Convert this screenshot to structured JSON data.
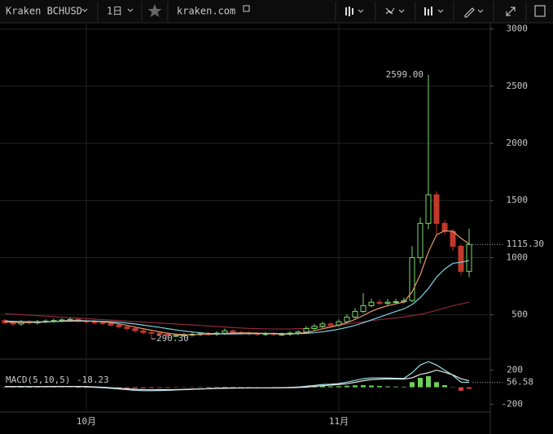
{
  "toolbar": {
    "symbol": "Kraken BCHUSD",
    "interval": "1日",
    "source": "kraken.com"
  },
  "chart_data": [
    {
      "type": "candlestick",
      "categories": [
        null,
        null,
        null,
        null,
        null,
        null,
        null,
        null,
        null,
        null,
        "10月",
        null,
        null,
        null,
        null,
        null,
        null,
        null,
        null,
        null,
        null,
        null,
        null,
        null,
        null,
        null,
        null,
        null,
        null,
        null,
        null,
        null,
        null,
        null,
        null,
        null,
        null,
        null,
        null,
        null,
        null,
        "11月",
        null,
        null,
        null,
        null,
        null,
        null,
        null,
        null,
        null,
        null,
        null,
        null,
        null,
        null,
        null,
        null
      ],
      "open": [
        450,
        430,
        420,
        440,
        430,
        440,
        445,
        450,
        455,
        460,
        445,
        440,
        430,
        425,
        410,
        395,
        380,
        360,
        345,
        340,
        330,
        320,
        320,
        325,
        330,
        335,
        330,
        340,
        360,
        345,
        340,
        335,
        330,
        335,
        330,
        330,
        340,
        350,
        380,
        400,
        420,
        410,
        440,
        480,
        530,
        580,
        610,
        600,
        610,
        615,
        625,
        1000,
        1300,
        1550,
        1300,
        1230,
        1100,
        880
      ],
      "high": [
        465,
        445,
        455,
        455,
        455,
        460,
        465,
        470,
        475,
        475,
        460,
        455,
        445,
        440,
        425,
        410,
        395,
        375,
        360,
        355,
        345,
        335,
        340,
        345,
        350,
        350,
        355,
        380,
        375,
        360,
        355,
        350,
        350,
        350,
        345,
        355,
        365,
        400,
        420,
        440,
        435,
        460,
        505,
        560,
        690,
        640,
        635,
        640,
        640,
        650,
        1100,
        1350,
        2599,
        1580,
        1330,
        1250,
        1120,
        1255
      ],
      "low": [
        415,
        405,
        405,
        415,
        415,
        425,
        430,
        435,
        440,
        430,
        425,
        415,
        410,
        395,
        380,
        365,
        345,
        330,
        290.3,
        315,
        305,
        305,
        305,
        310,
        315,
        315,
        315,
        325,
        330,
        325,
        320,
        315,
        315,
        315,
        315,
        315,
        325,
        335,
        365,
        385,
        395,
        395,
        425,
        465,
        515,
        565,
        585,
        585,
        595,
        600,
        610,
        950,
        1250,
        1200,
        1200,
        1060,
        845,
        830
      ],
      "close": [
        430,
        420,
        440,
        430,
        440,
        445,
        450,
        455,
        460,
        445,
        440,
        430,
        425,
        410,
        395,
        380,
        360,
        345,
        340,
        330,
        320,
        320,
        325,
        330,
        335,
        330,
        340,
        360,
        345,
        340,
        335,
        330,
        335,
        330,
        330,
        340,
        350,
        380,
        400,
        420,
        410,
        440,
        480,
        530,
        580,
        610,
        600,
        610,
        615,
        625,
        1000,
        1300,
        1550,
        1300,
        1230,
        1100,
        880,
        1115.3
      ],
      "up_color": "#7ddb6f",
      "down_color": "#c0392b",
      "series": [
        {
          "color": "#e89a6a",
          "values": [
            440,
            435,
            433,
            432,
            434,
            437,
            441,
            446,
            452,
            451,
            448,
            444,
            439,
            432,
            421,
            408,
            393,
            378,
            365,
            351,
            339,
            330,
            327,
            326,
            328,
            330,
            332,
            337,
            340,
            343,
            342,
            340,
            337,
            334,
            332,
            333,
            337,
            346,
            360,
            378,
            392,
            410,
            432,
            460,
            494,
            531,
            558,
            580,
            596,
            612,
            700,
            850,
            1050,
            1200,
            1235,
            1230,
            1170,
            1120
          ]
        },
        {
          "color": "#7fd3e3",
          "values": [
            445,
            443,
            441,
            440,
            439,
            440,
            441,
            443,
            445,
            446,
            446,
            445,
            443,
            440,
            435,
            428,
            420,
            410,
            400,
            390,
            379,
            368,
            358,
            350,
            343,
            337,
            334,
            333,
            333,
            334,
            335,
            336,
            337,
            337,
            336,
            335,
            335,
            338,
            344,
            352,
            362,
            374,
            390,
            408,
            430,
            455,
            480,
            505,
            530,
            552,
            590,
            650,
            730,
            830,
            900,
            950,
            960,
            975
          ]
        },
        {
          "color": "#8e2a3a",
          "values": [
            510,
            506,
            501,
            497,
            493,
            489,
            484,
            480,
            476,
            471,
            467,
            463,
            458,
            454,
            450,
            445,
            441,
            437,
            433,
            428,
            424,
            420,
            415,
            411,
            407,
            402,
            398,
            394,
            389,
            385,
            381,
            379,
            377,
            376,
            376,
            377,
            379,
            382,
            386,
            392,
            400,
            410,
            420,
            430,
            440,
            450,
            458,
            466,
            474,
            482,
            492,
            505,
            520,
            540,
            560,
            580,
            595,
            610
          ]
        }
      ],
      "ylim": [
        120,
        3040
      ],
      "yticks": [
        500,
        1000,
        1500,
        2000,
        2500,
        3000
      ],
      "grid": true,
      "high_label": {
        "value": 2599,
        "label": "2599.00"
      },
      "low_label": {
        "value": 290.3,
        "label": "290.30"
      },
      "last_price": {
        "value": 1115.3,
        "label": "1115.30"
      }
    },
    {
      "type": "macd",
      "title": "MACD(5,10,5)",
      "histogram": {
        "up_color": "#6fcf5a",
        "down_color": "#d9443a",
        "values": [
          5,
          3,
          2,
          2,
          3,
          4,
          4,
          5,
          5,
          2,
          0,
          -3,
          -4,
          -6,
          -8,
          -10,
          -12,
          -12,
          -10,
          -9,
          -8,
          -5,
          -3,
          -2,
          0,
          1,
          2,
          4,
          2,
          1,
          0,
          -1,
          -1,
          0,
          1,
          3,
          6,
          10,
          12,
          14,
          10,
          12,
          18,
          22,
          24,
          20,
          15,
          10,
          8,
          7,
          60,
          110,
          130,
          60,
          25,
          -5,
          -40,
          -18.23
        ]
      },
      "series": [
        {
          "color": "#9fe0ee",
          "values": [
            10,
            8,
            8,
            7,
            7,
            8,
            9,
            10,
            10,
            8,
            5,
            0,
            -5,
            -12,
            -20,
            -28,
            -36,
            -40,
            -40,
            -38,
            -36,
            -32,
            -28,
            -24,
            -20,
            -16,
            -12,
            -8,
            -8,
            -8,
            -8,
            -8,
            -8,
            -7,
            -5,
            -2,
            3,
            12,
            22,
            32,
            36,
            44,
            60,
            80,
            100,
            110,
            110,
            108,
            105,
            103,
            170,
            260,
            300,
            260,
            200,
            140,
            60,
            56.58
          ]
        },
        {
          "color": "#e8e8e8",
          "values": [
            6,
            7,
            7,
            7,
            7,
            7,
            8,
            8,
            9,
            9,
            8,
            5,
            0,
            -6,
            -12,
            -18,
            -24,
            -28,
            -30,
            -29,
            -28,
            -27,
            -25,
            -22,
            -20,
            -17,
            -14,
            -12,
            -10,
            -9,
            -8,
            -8,
            -8,
            -7,
            -6,
            -5,
            -3,
            2,
            10,
            18,
            26,
            32,
            42,
            58,
            76,
            90,
            95,
            98,
            97,
            96,
            110,
            150,
            170,
            200,
            175,
            145,
            100,
            75
          ]
        }
      ],
      "ylim": [
        -280,
        320
      ],
      "yticks": [
        200,
        -200
      ]
    }
  ]
}
